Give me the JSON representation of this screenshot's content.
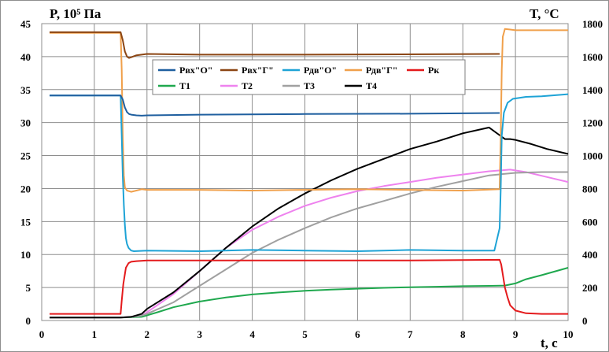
{
  "chart_data": {
    "type": "line",
    "title": "",
    "ylabel_left": "P, 10⁵ Па",
    "ylabel_right": "T, °C",
    "xlabel": "t, c",
    "xlim": [
      0,
      10
    ],
    "ylim_left": [
      0,
      45
    ],
    "ylim_right": [
      0,
      1800
    ],
    "x_ticks": [
      "0",
      "1",
      "2",
      "3",
      "4",
      "5",
      "6",
      "7",
      "8",
      "9",
      "10"
    ],
    "y_ticks_left": [
      "0",
      "5",
      "10",
      "15",
      "20",
      "25",
      "30",
      "35",
      "40",
      "45"
    ],
    "y_ticks_right": [
      "0",
      "200",
      "400",
      "600",
      "800",
      "1000",
      "1200",
      "1400",
      "1600",
      "1800"
    ],
    "grid": true,
    "legend_position": "top-center",
    "series": [
      {
        "name": "Рвх\"О\"",
        "axis": "left",
        "color": "#1f5f9f",
        "x": [
          0.15,
          1.5,
          1.54,
          1.58,
          1.62,
          1.66,
          1.7,
          1.8,
          1.9,
          2.0,
          3.0,
          5.0,
          7.0,
          8.0,
          8.7
        ],
        "y": [
          34.1,
          34.1,
          33.5,
          32.3,
          31.6,
          31.3,
          31.2,
          31.1,
          31.05,
          31.1,
          31.2,
          31.3,
          31.35,
          31.4,
          31.45
        ]
      },
      {
        "name": "Рвх\"Г\"",
        "axis": "left",
        "color": "#8b4513",
        "x": [
          0.15,
          1.5,
          1.54,
          1.58,
          1.62,
          1.66,
          1.7,
          1.8,
          2.0,
          3.0,
          5.0,
          8.7
        ],
        "y": [
          43.7,
          43.7,
          42.5,
          40.8,
          40.0,
          39.8,
          39.9,
          40.2,
          40.4,
          40.3,
          40.3,
          40.4
        ]
      },
      {
        "name": "Рдв\"О\"",
        "axis": "left",
        "color": "#1ea3d6",
        "x": [
          0.15,
          1.5,
          1.52,
          1.54,
          1.56,
          1.58,
          1.6,
          1.62,
          1.65,
          1.7,
          1.75,
          2.0,
          3.0,
          4.0,
          5.0,
          6.0,
          7.0,
          8.0,
          8.6,
          8.7,
          8.72,
          8.74,
          8.78,
          8.85,
          8.95,
          9.2,
          9.5,
          10.0
        ],
        "y": [
          34.1,
          34.1,
          28.0,
          22.0,
          17.5,
          14.5,
          12.5,
          11.6,
          11.0,
          10.6,
          10.5,
          10.6,
          10.5,
          10.7,
          10.6,
          10.5,
          10.7,
          10.6,
          10.6,
          14.0,
          20.0,
          28.0,
          31.5,
          33.0,
          33.6,
          33.9,
          34.0,
          34.3
        ]
      },
      {
        "name": "Рдв\"Г\"",
        "axis": "left",
        "color": "#f0a04b",
        "x": [
          0.15,
          1.5,
          1.52,
          1.54,
          1.56,
          1.58,
          1.62,
          1.7,
          1.9,
          2.0,
          3.0,
          4.0,
          5.0,
          6.0,
          7.0,
          8.0,
          8.7,
          8.72,
          8.74,
          8.76,
          8.8,
          8.9,
          9.0,
          10.0
        ],
        "y": [
          43.6,
          43.6,
          38.0,
          28.0,
          22.0,
          20.2,
          19.7,
          19.5,
          19.9,
          19.8,
          19.8,
          19.7,
          19.8,
          19.9,
          19.8,
          19.7,
          19.9,
          28.0,
          38.0,
          43.0,
          44.2,
          44.1,
          44.0,
          44.0
        ]
      },
      {
        "name": "Рк",
        "axis": "left",
        "color": "#e41a1c",
        "x": [
          0.15,
          1.5,
          1.52,
          1.55,
          1.6,
          1.65,
          1.7,
          1.8,
          2.0,
          3.0,
          5.0,
          7.0,
          8.7,
          8.73,
          8.76,
          8.8,
          8.85,
          8.9,
          9.0,
          9.2,
          9.5,
          10.0
        ],
        "y": [
          1.0,
          1.0,
          3.0,
          5.5,
          8.0,
          8.7,
          8.9,
          9.0,
          9.1,
          9.1,
          9.1,
          9.1,
          9.2,
          8.5,
          7.0,
          5.0,
          3.5,
          2.3,
          1.5,
          1.1,
          1.0,
          1.0
        ]
      },
      {
        "name": "T1",
        "axis": "right",
        "color": "#1fa84e",
        "x": [
          0.15,
          1.5,
          1.9,
          2.2,
          2.5,
          3.0,
          3.5,
          4.0,
          4.5,
          5.0,
          5.5,
          6.0,
          6.5,
          7.0,
          7.5,
          8.0,
          8.5,
          8.8,
          9.0,
          9.2,
          9.5,
          10.0
        ],
        "y": [
          18,
          18,
          22,
          50,
          80,
          115,
          140,
          158,
          170,
          180,
          187,
          193,
          198,
          202,
          205,
          208,
          210,
          212,
          225,
          250,
          275,
          320
        ]
      },
      {
        "name": "T2",
        "axis": "right",
        "color": "#ee82ee",
        "x": [
          0.15,
          1.5,
          1.7,
          1.9,
          2.0,
          2.5,
          3.0,
          3.5,
          4.0,
          4.5,
          5.0,
          5.5,
          6.0,
          6.5,
          7.0,
          7.5,
          8.0,
          8.5,
          8.9,
          9.2,
          9.6,
          10.0
        ],
        "y": [
          18,
          18,
          22,
          30,
          50,
          160,
          300,
          440,
          550,
          630,
          695,
          745,
          785,
          815,
          840,
          865,
          885,
          905,
          915,
          900,
          870,
          840
        ]
      },
      {
        "name": "T3",
        "axis": "right",
        "color": "#a0a0a0",
        "x": [
          0.15,
          1.5,
          1.7,
          1.9,
          2.0,
          2.5,
          3.0,
          3.5,
          4.0,
          4.5,
          5.0,
          5.5,
          6.0,
          6.5,
          7.0,
          7.5,
          8.0,
          8.5,
          9.0,
          9.5,
          10.0
        ],
        "y": [
          18,
          18,
          22,
          30,
          40,
          110,
          210,
          310,
          410,
          490,
          560,
          625,
          680,
          725,
          770,
          810,
          845,
          880,
          895,
          900,
          900
        ]
      },
      {
        "name": "T4",
        "axis": "right",
        "color": "#000000",
        "x": [
          0.15,
          1.5,
          1.7,
          1.9,
          2.0,
          2.5,
          3.0,
          3.5,
          4.0,
          4.5,
          5.0,
          5.5,
          6.0,
          6.5,
          7.0,
          7.5,
          8.0,
          8.5,
          8.8,
          8.9,
          9.0,
          9.3,
          9.6,
          10.0
        ],
        "y": [
          18,
          18,
          22,
          40,
          70,
          170,
          300,
          440,
          570,
          680,
          770,
          850,
          920,
          980,
          1040,
          1085,
          1135,
          1170,
          1100,
          1100,
          1095,
          1070,
          1040,
          1010
        ]
      }
    ]
  }
}
